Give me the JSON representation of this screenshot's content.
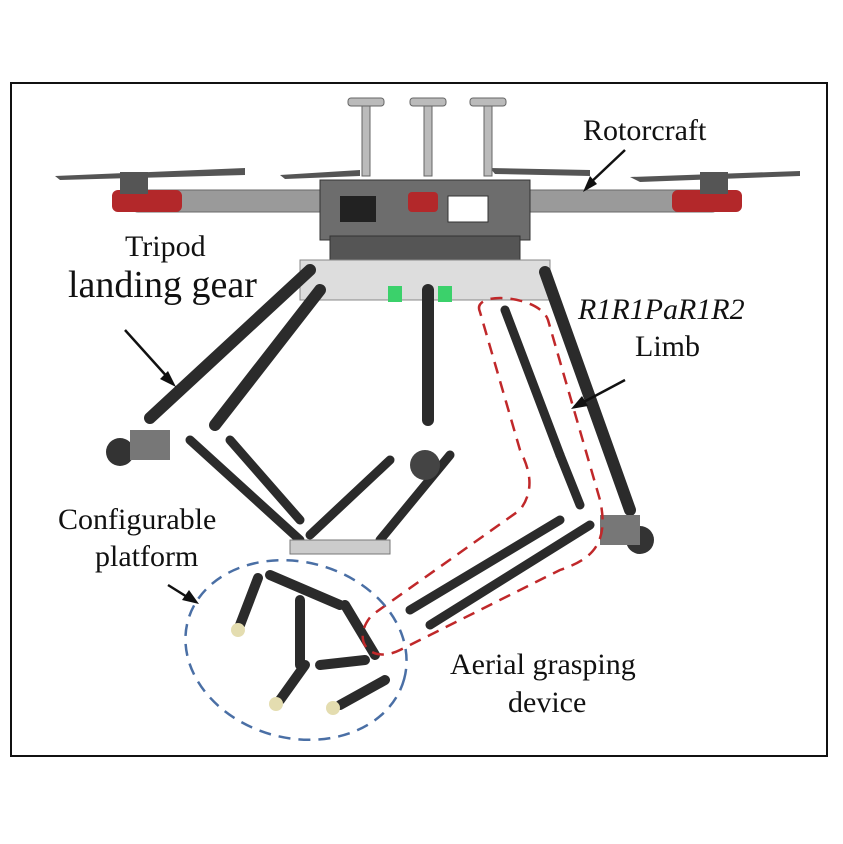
{
  "labels": {
    "rotorcraft": "Rotorcraft",
    "tripod_line1": "Tripod",
    "tripod_line2": "landing gear",
    "limb_formula": "R1R1PaR1R2",
    "limb_word": "Limb",
    "platform_line1": "Configurable",
    "platform_line2": "platform",
    "grasp_line1": "Aerial grasping",
    "grasp_line2": "device"
  },
  "colors": {
    "limb_outline": "#c0282a",
    "platform_outline": "#4a6fa5",
    "rod": "#2b2b2b",
    "arm": "#9a9a9a",
    "motor_red": "#b3282a",
    "joint_blue": "#2f7fd1",
    "joint_green": "#3bd16b"
  }
}
